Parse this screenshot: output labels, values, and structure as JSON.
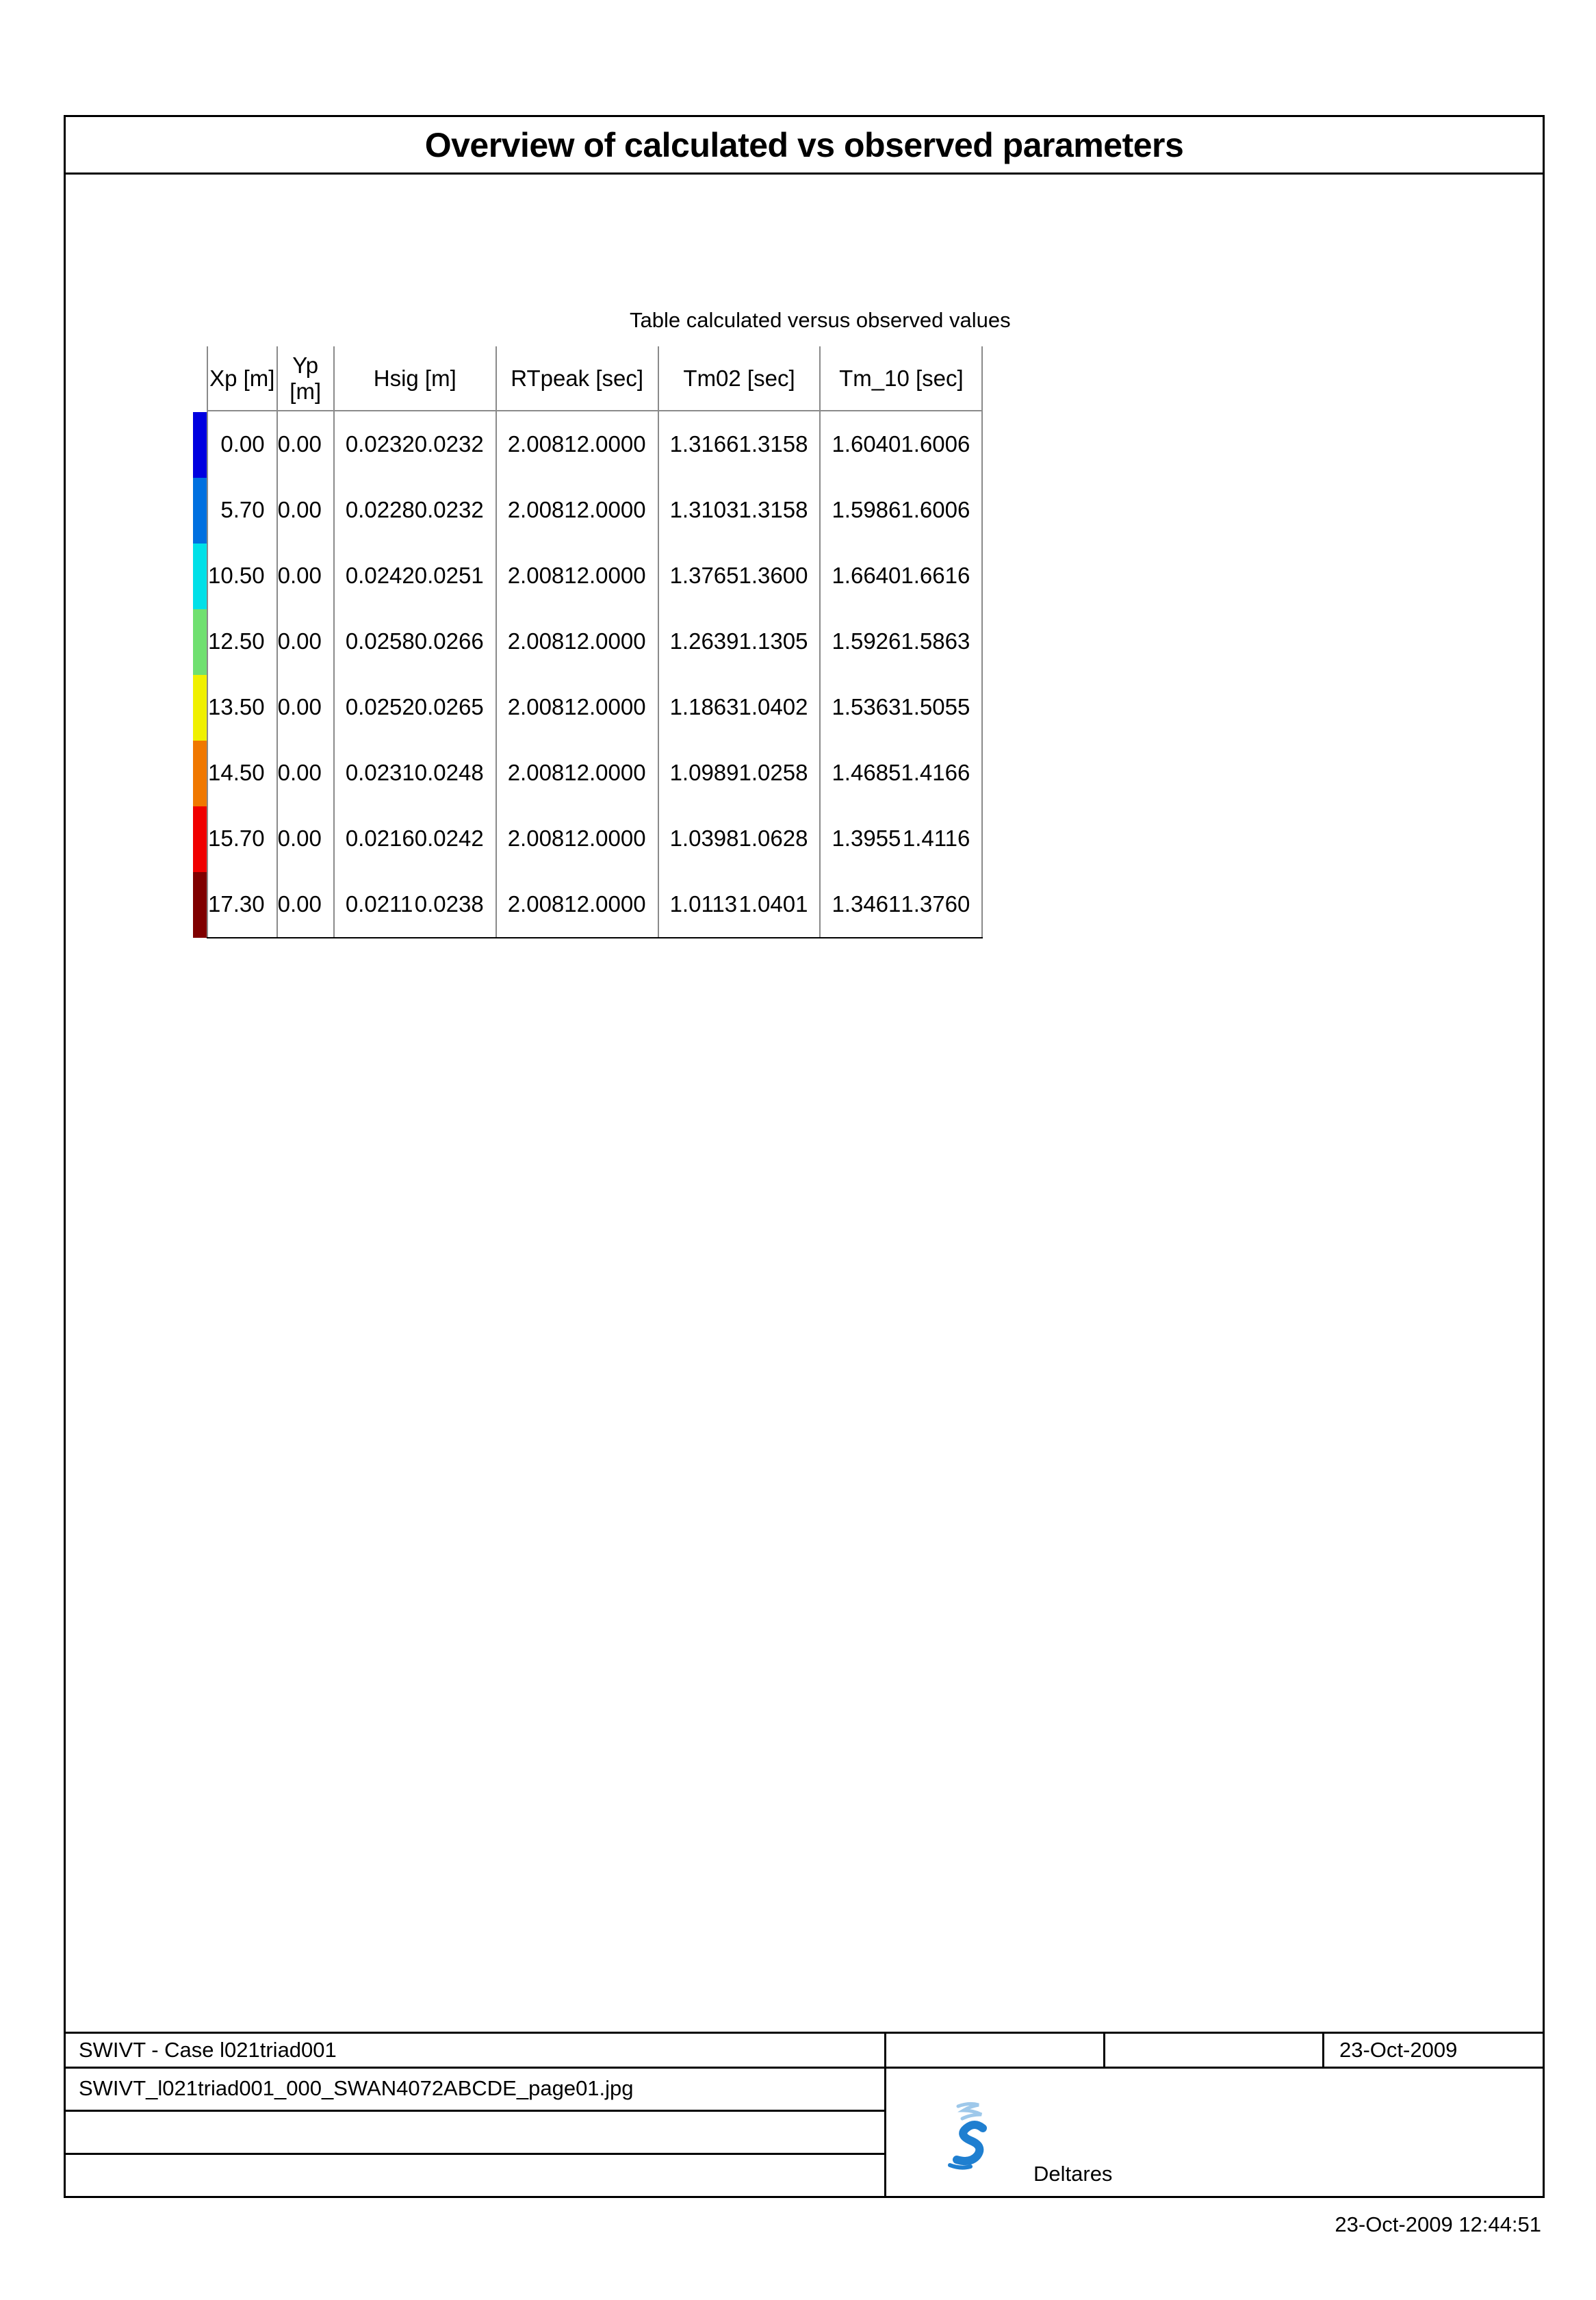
{
  "title": "Overview of calculated vs observed parameters",
  "table": {
    "caption": "Table calculated versus observed values",
    "headers": [
      "Xp [m]",
      "Yp [m]",
      "Hsig [m]",
      "RTpeak [sec]",
      "Tm02 [sec]",
      "Tm_10 [sec]"
    ],
    "row_colors": [
      "#0000e0",
      "#0070e0",
      "#00e0e8",
      "#70e070",
      "#f0f000",
      "#f07800",
      "#f00000",
      "#800000"
    ],
    "rows": [
      [
        "0.00",
        "0.00",
        "0.0232",
        "0.0232",
        "2.0081",
        "2.0000",
        "1.3166",
        "1.3158",
        "1.6040",
        "1.6006"
      ],
      [
        "5.70",
        "0.00",
        "0.0228",
        "0.0232",
        "2.0081",
        "2.0000",
        "1.3103",
        "1.3158",
        "1.5986",
        "1.6006"
      ],
      [
        "10.50",
        "0.00",
        "0.0242",
        "0.0251",
        "2.0081",
        "2.0000",
        "1.3765",
        "1.3600",
        "1.6640",
        "1.6616"
      ],
      [
        "12.50",
        "0.00",
        "0.0258",
        "0.0266",
        "2.0081",
        "2.0000",
        "1.2639",
        "1.1305",
        "1.5926",
        "1.5863"
      ],
      [
        "13.50",
        "0.00",
        "0.0252",
        "0.0265",
        "2.0081",
        "2.0000",
        "1.1863",
        "1.0402",
        "1.5363",
        "1.5055"
      ],
      [
        "14.50",
        "0.00",
        "0.0231",
        "0.0248",
        "2.0081",
        "2.0000",
        "1.0989",
        "1.0258",
        "1.4685",
        "1.4166"
      ],
      [
        "15.70",
        "0.00",
        "0.0216",
        "0.0242",
        "2.0081",
        "2.0000",
        "1.0398",
        "1.0628",
        "1.3955",
        "1.4116"
      ],
      [
        "17.30",
        "0.00",
        "0.0211",
        "0.0238",
        "2.0081",
        "2.0000",
        "1.0113",
        "1.0401",
        "1.3461",
        "1.3760"
      ]
    ]
  },
  "footer": {
    "case": "SWIVT - Case l021triad001",
    "date": "23-Oct-2009",
    "filename": "SWIVT_l021triad001_000_SWAN4072ABCDE_page01.jpg",
    "organization": "Deltares",
    "logo_icon": "deltares-logo-icon"
  },
  "timestamp": "23-Oct-2009 12:44:51"
}
